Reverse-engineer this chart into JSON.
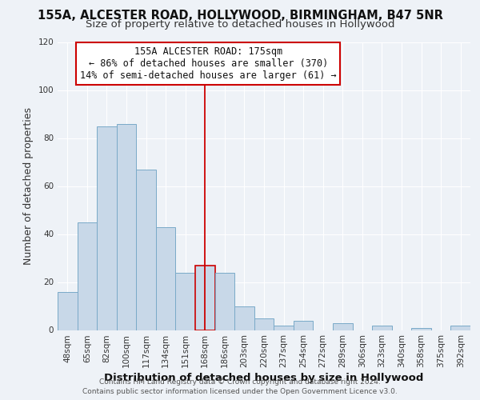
{
  "title1": "155A, ALCESTER ROAD, HOLLYWOOD, BIRMINGHAM, B47 5NR",
  "title2": "Size of property relative to detached houses in Hollywood",
  "xlabel": "Distribution of detached houses by size in Hollywood",
  "ylabel": "Number of detached properties",
  "bin_labels": [
    "48sqm",
    "65sqm",
    "82sqm",
    "100sqm",
    "117sqm",
    "134sqm",
    "151sqm",
    "168sqm",
    "186sqm",
    "203sqm",
    "220sqm",
    "237sqm",
    "254sqm",
    "272sqm",
    "289sqm",
    "306sqm",
    "323sqm",
    "340sqm",
    "358sqm",
    "375sqm",
    "392sqm"
  ],
  "bar_values": [
    16,
    45,
    85,
    86,
    67,
    43,
    24,
    27,
    24,
    10,
    5,
    2,
    4,
    0,
    3,
    0,
    2,
    0,
    1,
    0,
    2
  ],
  "bar_color": "#c8d8e8",
  "bar_edge_color": "#7aaac8",
  "highlight_bar_index": 7,
  "highlight_bar_edge_color": "#cc0000",
  "vline_color": "#cc0000",
  "annotation_title": "155A ALCESTER ROAD: 175sqm",
  "annotation_line1": "← 86% of detached houses are smaller (370)",
  "annotation_line2": "14% of semi-detached houses are larger (61) →",
  "annotation_box_edge_color": "#cc0000",
  "ylim": [
    0,
    120
  ],
  "yticks": [
    0,
    20,
    40,
    60,
    80,
    100,
    120
  ],
  "footer1": "Contains HM Land Registry data © Crown copyright and database right 2024.",
  "footer2": "Contains public sector information licensed under the Open Government Licence v3.0.",
  "background_color": "#eef2f7",
  "plot_background": "#eef2f7",
  "grid_color": "#ffffff",
  "title_fontsize": 10.5,
  "subtitle_fontsize": 9.5,
  "axis_label_fontsize": 9,
  "tick_fontsize": 7.5,
  "annotation_fontsize": 8.5,
  "footer_fontsize": 6.5
}
